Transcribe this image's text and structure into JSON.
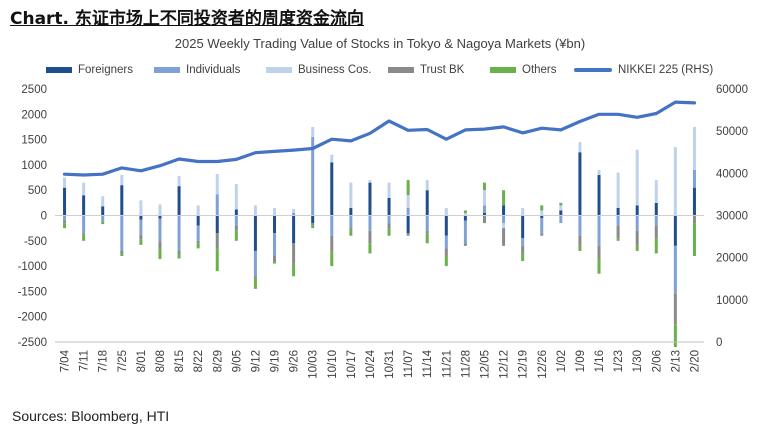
{
  "heading": "Chart. 东证市场上不同投资者的周度资金流向",
  "source": "Sources: Bloomberg, HTI",
  "colors": {
    "foreigners": "#1f4e8c",
    "individuals": "#7fa1d6",
    "business": "#bfd2ec",
    "trust": "#8a8a8a",
    "others": "#6ab04c",
    "nikkei": "#4472c4"
  },
  "chart_data": {
    "type": "bar",
    "title": "2025 Weekly Trading Value of Stocks in Tokyo & Nagoya Markets (¥bn)",
    "legend_position": "top",
    "categories": [
      "7/04",
      "7/11",
      "7/18",
      "7/25",
      "8/01",
      "8/08",
      "8/15",
      "8/22",
      "8/29",
      "9/05",
      "9/12",
      "9/19",
      "9/26",
      "10/03",
      "10/10",
      "10/17",
      "10/24",
      "10/31",
      "11/07",
      "11/14",
      "11/21",
      "11/28",
      "12/05",
      "12/12",
      "12/19",
      "12/26",
      "1/02",
      "1/09",
      "1/16",
      "1/23",
      "1/30",
      "2/06",
      "2/13",
      "2/20"
    ],
    "y_left": {
      "min": -2500,
      "max": 2500,
      "step": 500
    },
    "y_right": {
      "min": 0,
      "max": 60000,
      "step": 10000
    },
    "series": [
      {
        "name": "Foreigners",
        "key": "foreigners",
        "values": [
          550,
          400,
          180,
          600,
          -80,
          -60,
          580,
          -200,
          -350,
          120,
          -700,
          -350,
          -550,
          -150,
          1050,
          150,
          650,
          350,
          -350,
          500,
          -400,
          -100,
          50,
          200,
          -450,
          -50,
          100,
          1250,
          800,
          150,
          200,
          250,
          -600,
          550
        ]
      },
      {
        "name": "Individuals",
        "key": "individuals",
        "values": [
          -100,
          -350,
          -120,
          -700,
          -300,
          -450,
          -700,
          -300,
          420,
          -200,
          -500,
          -450,
          50,
          1550,
          -400,
          -250,
          -300,
          -150,
          150,
          -300,
          -250,
          -450,
          150,
          -150,
          -150,
          -300,
          -150,
          -400,
          -600,
          -200,
          -300,
          -200,
          -950,
          350
        ]
      },
      {
        "name": "Business Cos.",
        "key": "business",
        "values": [
          200,
          250,
          200,
          200,
          300,
          220,
          200,
          200,
          400,
          500,
          200,
          150,
          80,
          200,
          150,
          500,
          50,
          300,
          250,
          200,
          150,
          50,
          300,
          -100,
          150,
          100,
          100,
          200,
          100,
          700,
          1100,
          450,
          1350,
          850
        ]
      },
      {
        "name": "Trust BK",
        "key": "trust",
        "values": [
          -50,
          -50,
          0,
          -50,
          -100,
          -150,
          -50,
          -50,
          -300,
          -100,
          -50,
          -100,
          -400,
          -50,
          -300,
          -50,
          -250,
          -100,
          -50,
          -50,
          -150,
          -50,
          -150,
          -350,
          -150,
          -50,
          0,
          -200,
          -250,
          -250,
          -300,
          -250,
          -600,
          -150
        ]
      },
      {
        "name": "Others",
        "key": "others",
        "values": [
          -100,
          -100,
          -50,
          -50,
          -100,
          -200,
          -100,
          -100,
          -450,
          -200,
          -200,
          -50,
          -250,
          -50,
          -300,
          -100,
          -200,
          -150,
          300,
          -200,
          -200,
          50,
          150,
          300,
          -150,
          100,
          50,
          -100,
          -300,
          -50,
          -100,
          -300,
          -450,
          -650
        ]
      }
    ],
    "line": {
      "name": "NIKKEI 225 (RHS)",
      "key": "nikkei",
      "values": [
        39800,
        39600,
        39800,
        41300,
        40600,
        41800,
        43400,
        42800,
        42800,
        43300,
        44900,
        45200,
        45500,
        45900,
        48100,
        47700,
        49500,
        52400,
        50200,
        50400,
        48100,
        50300,
        50500,
        51000,
        49600,
        50700,
        50300,
        52300,
        54000,
        54000,
        53300,
        54200,
        56900,
        56700
      ]
    }
  }
}
